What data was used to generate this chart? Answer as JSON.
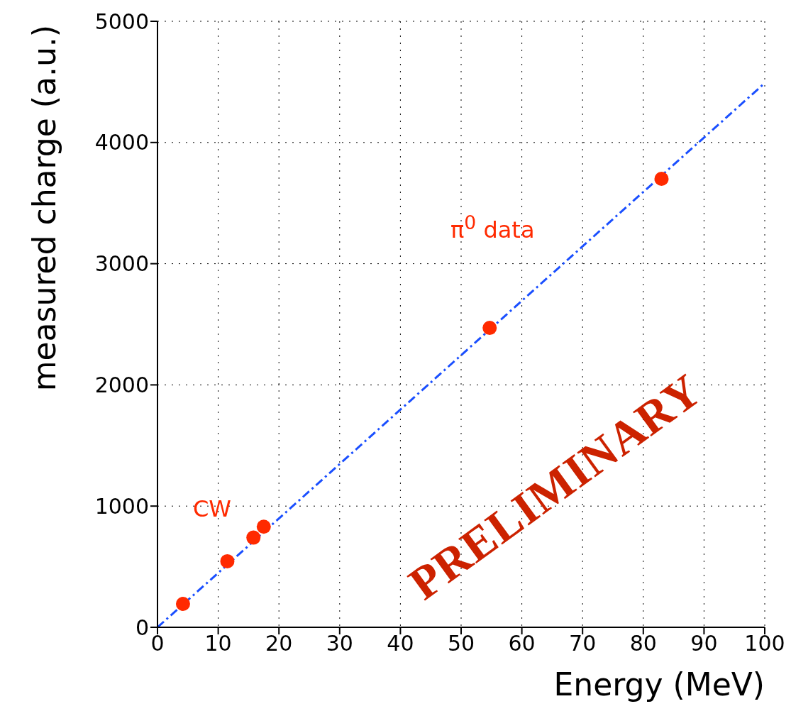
{
  "chart_data": {
    "type": "scatter",
    "xlabel": "Energy (MeV)",
    "ylabel": "measured charge (a.u.)",
    "xlim": [
      0,
      100
    ],
    "xticks": [
      0,
      10,
      20,
      30,
      40,
      50,
      60,
      70,
      80,
      90,
      100
    ],
    "ylim": [
      0,
      5000
    ],
    "yticks": [
      0,
      1000,
      2000,
      3000,
      4000,
      5000
    ],
    "grid": true,
    "series": [
      {
        "color": "#ff2a00",
        "marker": "circle",
        "x": [
          4.2,
          11.5,
          15.8,
          17.5,
          54.7,
          83.0
        ],
        "values": [
          193,
          545,
          740,
          830,
          2470,
          3700
        ]
      },
      {
        "type": "line",
        "color": "#1a4fff",
        "marker": "none",
        "line_style": "dashed",
        "x": [
          0,
          100
        ],
        "values": [
          0,
          4490
        ]
      }
    ],
    "annotations": [
      "π$^{0}$ data",
      "CW",
      "PRELIMINARY"
    ]
  }
}
